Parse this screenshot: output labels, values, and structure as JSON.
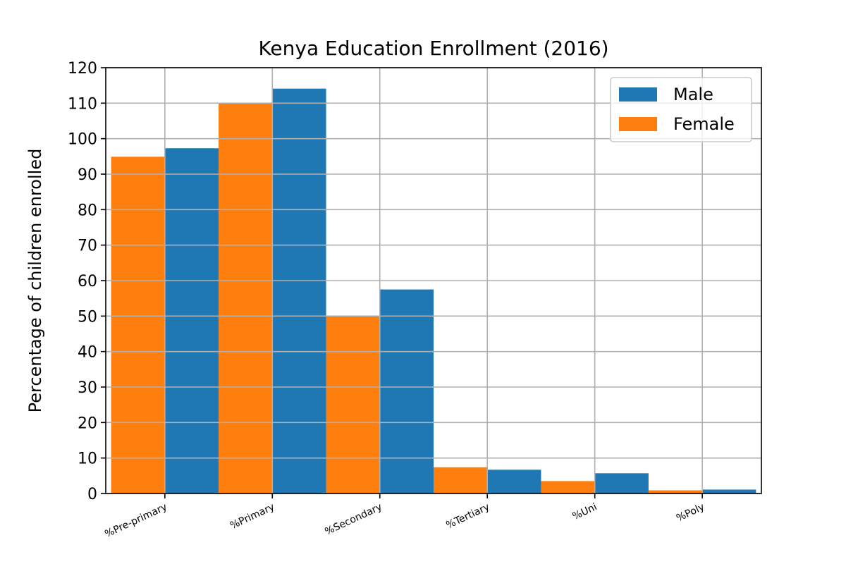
{
  "chart_data": {
    "type": "bar",
    "title": "Kenya Education Enrollment (2016)",
    "xlabel": "",
    "ylabel": "Percentage of children enrolled",
    "categories": [
      "%Pre-primary",
      "%Primary",
      "%Secondary",
      "%Tertiary",
      "%Uni",
      "%Poly"
    ],
    "series": [
      {
        "name": "Male",
        "color": "#1f77b4",
        "values": [
          97.3,
          114.1,
          57.5,
          6.7,
          5.7,
          1.1
        ]
      },
      {
        "name": "Female",
        "color": "#ff7f0e",
        "values": [
          94.9,
          110.0,
          50.0,
          7.4,
          3.5,
          0.9
        ]
      }
    ],
    "ylim": [
      0,
      120
    ],
    "yticks": [
      0,
      10,
      20,
      30,
      40,
      50,
      60,
      70,
      80,
      90,
      100,
      110,
      120
    ],
    "grid": true,
    "legend_position": "top-right"
  }
}
